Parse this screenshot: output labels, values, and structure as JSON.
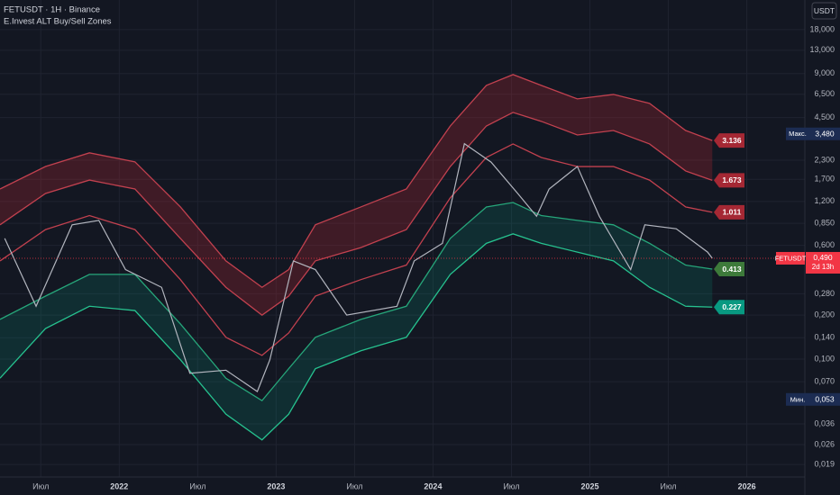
{
  "chart_data": {
    "type": "line",
    "title": "FETUSDT · 1H · Binance",
    "subtitle": "E.Invest ALT Buy/Sell Zones",
    "currency": "USDT",
    "log_scale": true,
    "grid": true,
    "xlim": [
      2021.24,
      2026.37
    ],
    "xticks": [
      {
        "value": 2021.5,
        "label": "Июл"
      },
      2022,
      {
        "value": 2022.5,
        "label": "Июл"
      },
      2023,
      {
        "value": 2023.5,
        "label": "Июл"
      },
      2024,
      {
        "value": 2024.5,
        "label": "Июл"
      },
      2025,
      {
        "value": 2025.5,
        "label": "Июл"
      },
      2026
    ],
    "ylim": [
      0.0156,
      28.7
    ],
    "yticks": [
      {
        "value": 18,
        "label": "18,000"
      },
      {
        "value": 13,
        "label": "13,000"
      },
      {
        "value": 9,
        "label": "9,000"
      },
      {
        "value": 6.5,
        "label": "6,500"
      },
      {
        "value": 4.5,
        "label": "4,500"
      },
      {
        "value": 2.3,
        "label": "2,300"
      },
      {
        "value": 1.7,
        "label": "1,700"
      },
      {
        "value": 1.2,
        "label": "1,200"
      },
      {
        "value": 0.85,
        "label": "0,850"
      },
      {
        "value": 0.6,
        "label": "0,600"
      },
      {
        "value": 0.28,
        "label": "0,280"
      },
      {
        "value": 0.2,
        "label": "0,200"
      },
      {
        "value": 0.14,
        "label": "0,140"
      },
      {
        "value": 0.1,
        "label": "0,100"
      },
      {
        "value": 0.07,
        "label": "0,070"
      },
      {
        "value": 0.036,
        "label": "0,036"
      },
      {
        "value": 0.026,
        "label": "0,026"
      },
      {
        "value": 0.019,
        "label": "0,019"
      }
    ],
    "band_x": [
      2021.24,
      2021.53,
      2021.81,
      2022.1,
      2022.39,
      2022.68,
      2022.91,
      2023.08,
      2023.25,
      2023.54,
      2023.83,
      2024.11,
      2024.34,
      2024.51,
      2024.69,
      2024.92,
      2025.15,
      2025.38,
      2025.61,
      2025.78
    ],
    "series": [
      {
        "color": "#c2414f",
        "label_color": "#a52834",
        "values": [
          1.46,
          2.08,
          2.58,
          2.24,
          1.1,
          0.47,
          0.31,
          0.41,
          0.83,
          1.1,
          1.46,
          3.94,
          7.47,
          8.86,
          7.47,
          6.04,
          6.48,
          5.63,
          3.67,
          3.136
        ]
      },
      {
        "color": "#c2414f",
        "label_color": "#a52834",
        "values": [
          0.83,
          1.36,
          1.68,
          1.46,
          0.67,
          0.31,
          0.2,
          0.27,
          0.47,
          0.58,
          0.77,
          2.08,
          3.94,
          4.88,
          4.24,
          3.42,
          3.67,
          2.97,
          1.94,
          1.673
        ]
      },
      {
        "color": "#c2414f",
        "label_color": "#a52834",
        "values": [
          0.47,
          0.77,
          0.96,
          0.77,
          0.35,
          0.141,
          0.106,
          0.151,
          0.27,
          0.35,
          0.44,
          1.27,
          2.4,
          2.97,
          2.4,
          2.08,
          2.08,
          1.68,
          1.1,
          1.011
        ]
      },
      {
        "color": "#26a67a",
        "label_color": "#3d7a3a",
        "values": [
          0.187,
          0.27,
          0.38,
          0.38,
          0.174,
          0.074,
          0.052,
          0.086,
          0.141,
          0.187,
          0.23,
          0.67,
          1.1,
          1.18,
          0.96,
          0.89,
          0.83,
          0.62,
          0.44,
          0.413
        ]
      },
      {
        "color": "#26c28f",
        "label_color": "#089981",
        "values": [
          0.074,
          0.162,
          0.23,
          0.215,
          0.099,
          0.042,
          0.028,
          0.042,
          0.086,
          0.114,
          0.141,
          0.38,
          0.62,
          0.72,
          0.62,
          0.54,
          0.47,
          0.31,
          0.23,
          0.227
        ]
      }
    ],
    "price": {
      "name": "FETUSDT",
      "color": "#b2b5be",
      "x": [
        2021.27,
        2021.47,
        2021.7,
        2021.87,
        2022.04,
        2022.27,
        2022.45,
        2022.68,
        2022.88,
        2022.96,
        2023.11,
        2023.25,
        2023.45,
        2023.77,
        2023.88,
        2024.06,
        2024.2,
        2024.37,
        2024.54,
        2024.66,
        2024.74,
        2024.92,
        2025.06,
        2025.26,
        2025.35,
        2025.55,
        2025.75,
        2025.78
      ],
      "values": [
        0.67,
        0.23,
        0.83,
        0.89,
        0.41,
        0.31,
        0.08,
        0.084,
        0.06,
        0.099,
        0.47,
        0.41,
        0.2,
        0.23,
        0.47,
        0.62,
        2.98,
        2.23,
        1.36,
        0.95,
        1.46,
        2.08,
        0.95,
        0.41,
        0.83,
        0.78,
        0.54,
        0.49
      ],
      "value_labels": [
        null,
        null,
        null,
        null,
        null,
        null,
        null,
        null,
        null,
        null,
        null,
        null,
        null,
        null,
        null,
        null,
        null,
        null,
        null,
        null,
        null,
        null,
        null,
        null,
        null,
        null,
        null,
        "0,490"
      ],
      "countdown": "2d 13h"
    },
    "annotations": [
      {
        "text": "Макс.",
        "value": 3.48,
        "label": "3,480"
      },
      {
        "text": "Мин.",
        "value": 0.053,
        "label": "0,053"
      }
    ]
  }
}
